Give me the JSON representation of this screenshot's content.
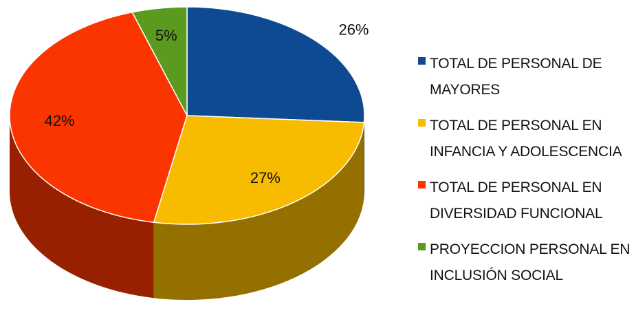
{
  "chart_data": {
    "type": "pie",
    "three_d": true,
    "legend_position": "right",
    "slices": [
      {
        "label": "TOTAL DE PERSONAL DE MAYORES",
        "value": 26,
        "data_label": "26%",
        "color": "#0e4a91"
      },
      {
        "label": "TOTAL DE PERSONAL EN INFANCIA Y ADOLESCENCIA",
        "value": 27,
        "data_label": "27%",
        "color": "#f7bb00"
      },
      {
        "label": "TOTAL DE PERSONAL EN DIVERSIDAD FUNCIONAL",
        "value": 42,
        "data_label": "42%",
        "color": "#fa3500"
      },
      {
        "label": "PROYECCION PERSONAL EN INCLUSIÓN SOCIAL",
        "value": 5,
        "data_label": "5%",
        "color": "#5a9a1e"
      }
    ]
  }
}
